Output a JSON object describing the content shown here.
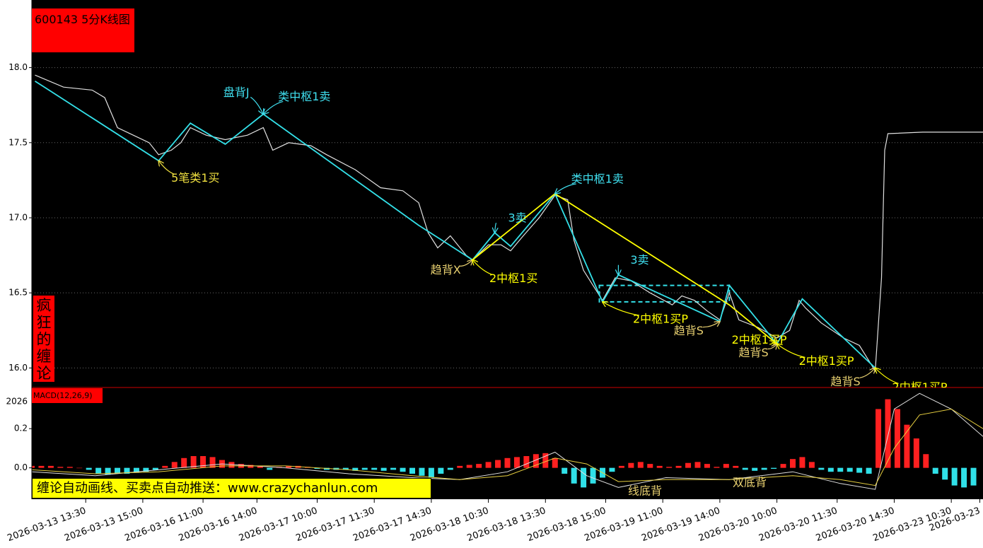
{
  "header": {
    "title": "600143 5分K线图"
  },
  "side_label": "疯狂的缠论",
  "banner": "缠论自动画线、买卖点自动推送：www.crazychanlun.com",
  "chart_data": [
    {
      "type": "line",
      "xlim": [
        0,
        300
      ],
      "ylim": [
        15.87,
        18.45
      ],
      "yticks": [
        {
          "value": 18,
          "label": "18.0"
        },
        {
          "value": 17.5,
          "label": "17.5"
        },
        {
          "value": 17,
          "label": "17.0"
        },
        {
          "value": 16.5,
          "label": "16.5"
        },
        {
          "value": 16,
          "label": "16.0"
        }
      ],
      "grid": true,
      "series": [
        {
          "color": "#e0e0e0",
          "x": [
            1,
            10,
            19,
            23,
            27,
            32,
            37,
            40,
            44,
            47,
            50,
            55,
            61,
            68,
            73,
            76,
            81,
            88,
            93,
            102,
            110,
            117,
            122,
            125,
            128,
            132,
            137,
            139,
            144,
            148,
            151,
            155,
            160,
            165,
            169,
            171,
            174,
            177,
            180,
            184,
            189,
            195,
            202,
            205,
            209,
            213,
            217,
            220,
            223,
            229,
            235,
            239,
            242,
            244,
            249,
            256,
            261,
            266,
            268,
            269,
            270,
            281,
            294,
            300
          ],
          "values": [
            17.95,
            17.87,
            17.85,
            17.8,
            17.6,
            17.55,
            17.5,
            17.42,
            17.45,
            17.5,
            17.6,
            17.55,
            17.52,
            17.55,
            17.6,
            17.45,
            17.5,
            17.48,
            17.42,
            17.32,
            17.2,
            17.18,
            17.1,
            16.9,
            16.8,
            16.88,
            16.75,
            16.72,
            16.82,
            16.82,
            16.78,
            16.88,
            17.0,
            17.15,
            17.12,
            16.85,
            16.65,
            16.55,
            16.45,
            16.6,
            16.58,
            16.5,
            16.42,
            16.48,
            16.45,
            16.38,
            16.32,
            16.5,
            16.32,
            16.27,
            16.2,
            16.25,
            16.45,
            16.4,
            16.3,
            16.2,
            16.15,
            15.98,
            16.6,
            17.45,
            17.56,
            17.57,
            17.57,
            17.57
          ]
        },
        {
          "color": "#33e0e8",
          "x": [
            1,
            40,
            50,
            61,
            73,
            122,
            139,
            146,
            151,
            165,
            180,
            185,
            217,
            220,
            235,
            243,
            266
          ],
          "values": [
            17.91,
            17.38,
            17.63,
            17.49,
            17.69,
            16.95,
            16.72,
            16.9,
            16.81,
            17.16,
            16.44,
            16.62,
            16.31,
            16.55,
            16.16,
            16.46,
            16.0
          ]
        },
        {
          "color": "#ffff00",
          "x": [
            139,
            165,
            220,
            235
          ],
          "values": [
            16.72,
            17.16,
            16.42,
            16.16
          ]
        }
      ],
      "zones": [
        {
          "x": [
            179,
            220
          ],
          "range": [
            16.44,
            16.55
          ],
          "color": "#33e0e8"
        }
      ],
      "annotations": [
        {
          "text": "盘背J",
          "x": 73,
          "y": 17.69,
          "color": "#40e0f0"
        },
        {
          "text": "类中枢1卖",
          "x": 73,
          "y": 17.69,
          "color": "#40e0f0"
        },
        {
          "text": "5笔类1买",
          "x": 40,
          "y": 17.38,
          "color": "#f0e040"
        },
        {
          "text": "类中枢1卖",
          "x": 165,
          "y": 17.16,
          "color": "#40e0f0"
        },
        {
          "text": "3卖",
          "x": 146,
          "y": 16.9,
          "color": "#40e0f0"
        },
        {
          "text": "趋背X",
          "x": 139,
          "y": 16.72,
          "color": "#e8d070"
        },
        {
          "text": "2中枢1买",
          "x": 139,
          "y": 16.72,
          "color": "#ffff00"
        },
        {
          "text": "3卖",
          "x": 185,
          "y": 16.62,
          "color": "#40e0f0"
        },
        {
          "text": "2中枢1买P",
          "x": 180,
          "y": 16.44,
          "color": "#ffff00"
        },
        {
          "text": "趋背S",
          "x": 217,
          "y": 16.31,
          "color": "#e8d070"
        },
        {
          "text": "2中枢1买P",
          "x": 235,
          "y": 16.16,
          "color": "#ffff00"
        },
        {
          "text": "趋背S",
          "x": 235,
          "y": 16.16,
          "color": "#e8d070"
        },
        {
          "text": "2中枢1买P",
          "x": 235,
          "y": 16.16,
          "color": "#ffff00"
        },
        {
          "text": "趋背S",
          "x": 266,
          "y": 16.0,
          "color": "#e8d070"
        },
        {
          "text": "2中枢1买P",
          "x": 266,
          "y": 16.0,
          "color": "#ffff00"
        }
      ]
    },
    {
      "type": "macd",
      "title": "MACD(12,26,9)",
      "overlay_label": "2026",
      "xlim": [
        0,
        300
      ],
      "ylim": [
        -0.16,
        0.41
      ],
      "yticks": [
        {
          "value": 0.2,
          "label": "0.2"
        },
        {
          "value": 0,
          "label": "0.0"
        }
      ],
      "xticks": [
        {
          "value": 17,
          "label": "2026-03-13 13:30"
        },
        {
          "value": 35,
          "label": "2026-03-13 15:00"
        },
        {
          "value": 54,
          "label": "2026-03-16 11:00"
        },
        {
          "value": 71,
          "label": "2026-03-16 14:00"
        },
        {
          "value": 90,
          "label": "2026-03-17 10:00"
        },
        {
          "value": 108,
          "label": "2026-03-17 11:30"
        },
        {
          "value": 126,
          "label": "2026-03-17 14:30"
        },
        {
          "value": 144,
          "label": "2026-03-18 10:30"
        },
        {
          "value": 162,
          "label": "2026-03-18 13:30"
        },
        {
          "value": 181,
          "label": "2026-03-18 15:00"
        },
        {
          "value": 199,
          "label": "2026-03-19 11:00"
        },
        {
          "value": 217,
          "label": "2026-03-19 14:00"
        },
        {
          "value": 235,
          "label": "2026-03-20 10:00"
        },
        {
          "value": 254,
          "label": "2026-03-20 11:30"
        },
        {
          "value": 272,
          "label": "2026-03-20 14:30"
        },
        {
          "value": 290,
          "label": "2026-03-23 10:30"
        },
        {
          "value": 299,
          "label": "2026-03-23"
        }
      ],
      "histogram": {
        "pos_color": "#ff2020",
        "neg_color": "#30e0e8",
        "x": [
          0,
          3,
          6,
          9,
          12,
          15,
          18,
          21,
          24,
          27,
          30,
          33,
          36,
          39,
          42,
          45,
          48,
          51,
          54,
          57,
          60,
          63,
          66,
          69,
          72,
          75,
          78,
          81,
          84,
          87,
          90,
          93,
          96,
          99,
          102,
          105,
          108,
          111,
          114,
          117,
          120,
          123,
          126,
          129,
          132,
          135,
          138,
          141,
          144,
          147,
          150,
          153,
          156,
          159,
          162,
          165,
          168,
          171,
          174,
          177,
          180,
          183,
          186,
          189,
          192,
          195,
          198,
          201,
          204,
          207,
          210,
          213,
          216,
          219,
          222,
          225,
          228,
          231,
          234,
          237,
          240,
          243,
          246,
          249,
          252,
          255,
          258,
          261,
          264,
          267,
          270,
          273,
          276,
          279,
          282,
          285,
          288,
          291,
          294,
          297
        ],
        "values": [
          0.01,
          0.01,
          0.01,
          0.005,
          0.005,
          0.0,
          -0.01,
          -0.03,
          -0.035,
          -0.03,
          -0.03,
          -0.025,
          -0.02,
          -0.01,
          0.01,
          0.03,
          0.05,
          0.06,
          0.06,
          0.055,
          0.04,
          0.03,
          0.02,
          0.015,
          0.01,
          -0.01,
          0.005,
          0.01,
          0.01,
          0.005,
          -0.005,
          -0.01,
          -0.01,
          -0.01,
          -0.015,
          -0.01,
          -0.01,
          -0.015,
          -0.01,
          -0.02,
          -0.03,
          -0.04,
          -0.05,
          -0.03,
          -0.01,
          0.01,
          0.015,
          0.02,
          0.03,
          0.04,
          0.05,
          0.055,
          0.06,
          0.07,
          0.075,
          0.05,
          -0.03,
          -0.08,
          -0.1,
          -0.08,
          -0.05,
          -0.02,
          0.01,
          0.025,
          0.03,
          0.02,
          0.01,
          0.005,
          0.01,
          0.025,
          0.03,
          0.02,
          0.005,
          0.02,
          0.01,
          -0.01,
          -0.015,
          -0.01,
          -0.005,
          0.02,
          0.045,
          0.055,
          0.03,
          -0.01,
          -0.02,
          -0.02,
          -0.02,
          -0.025,
          -0.03,
          0.3,
          0.35,
          0.3,
          0.22,
          0.15,
          0.07,
          -0.03,
          -0.06,
          -0.09,
          -0.1,
          -0.09
        ]
      },
      "series": [
        {
          "color": "#e0e0e0",
          "x": [
            0,
            20,
            40,
            60,
            80,
            100,
            120,
            135,
            150,
            165,
            175,
            185,
            200,
            220,
            240,
            255,
            266,
            272,
            280,
            290,
            300
          ],
          "values": [
            -0.02,
            -0.04,
            -0.01,
            0.02,
            0.0,
            -0.03,
            -0.05,
            -0.06,
            -0.02,
            0.08,
            -0.04,
            -0.1,
            -0.05,
            -0.06,
            -0.02,
            -0.08,
            -0.11,
            0.3,
            0.38,
            0.3,
            0.16
          ]
        },
        {
          "color": "#e8d040",
          "x": [
            0,
            20,
            40,
            60,
            80,
            100,
            120,
            135,
            150,
            165,
            175,
            185,
            200,
            220,
            240,
            255,
            266,
            272,
            280,
            290,
            300
          ],
          "values": [
            -0.01,
            -0.03,
            -0.02,
            0.01,
            0.01,
            -0.01,
            -0.04,
            -0.06,
            -0.04,
            0.05,
            0.02,
            -0.07,
            -0.06,
            -0.06,
            -0.04,
            -0.06,
            -0.09,
            0.1,
            0.27,
            0.3,
            0.2
          ]
        }
      ],
      "annotations": [
        {
          "text": "线底背",
          "color": "#e8d070"
        },
        {
          "text": "双底背",
          "color": "#e8d070"
        }
      ]
    }
  ]
}
